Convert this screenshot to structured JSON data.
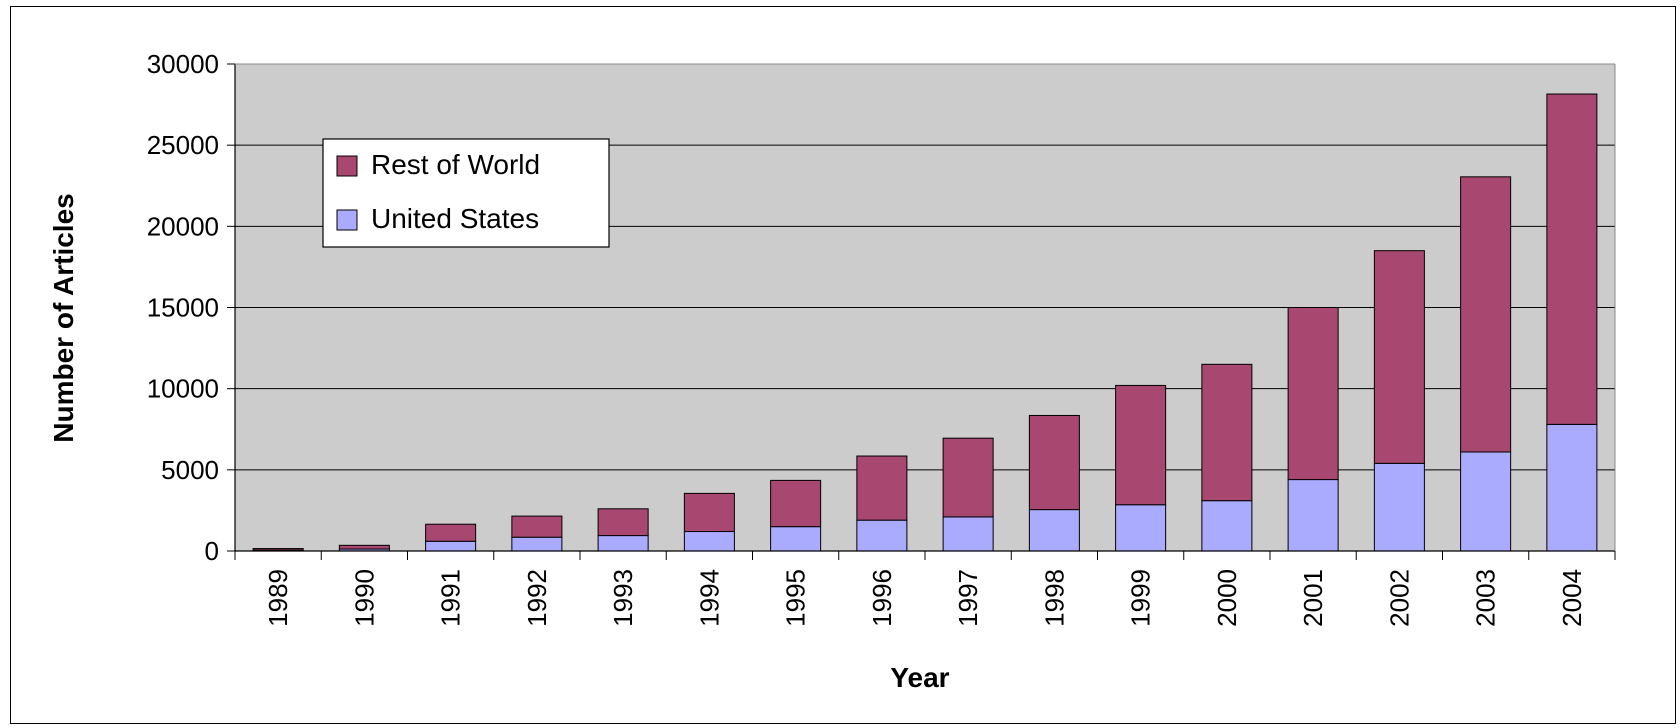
{
  "chart_data": {
    "type": "bar",
    "stacked": true,
    "categories": [
      "1989",
      "1990",
      "1991",
      "1992",
      "1993",
      "1994",
      "1995",
      "1996",
      "1997",
      "1998",
      "1999",
      "2000",
      "2001",
      "2002",
      "2003",
      "2004"
    ],
    "series": [
      {
        "name": "United States",
        "color": "#aaaaff",
        "values": [
          60,
          120,
          600,
          850,
          950,
          1200,
          1500,
          1900,
          2100,
          2550,
          2850,
          3100,
          4400,
          5400,
          6100,
          7800
        ]
      },
      {
        "name": "Rest of World",
        "color": "#a8476f",
        "values": [
          90,
          230,
          1050,
          1300,
          1650,
          2350,
          2850,
          3950,
          4850,
          5800,
          7350,
          8400,
          10600,
          13100,
          16950,
          20350
        ]
      }
    ],
    "xlabel": "Year",
    "ylabel": "Number of Articles",
    "ylim": [
      0,
      30000
    ],
    "yticks": [
      0,
      5000,
      10000,
      15000,
      20000,
      25000,
      30000
    ],
    "grid": true,
    "legend": {
      "position": "top-left",
      "entries": [
        "Rest of World",
        "United States"
      ]
    },
    "plot_background": "#c0c0c0"
  }
}
